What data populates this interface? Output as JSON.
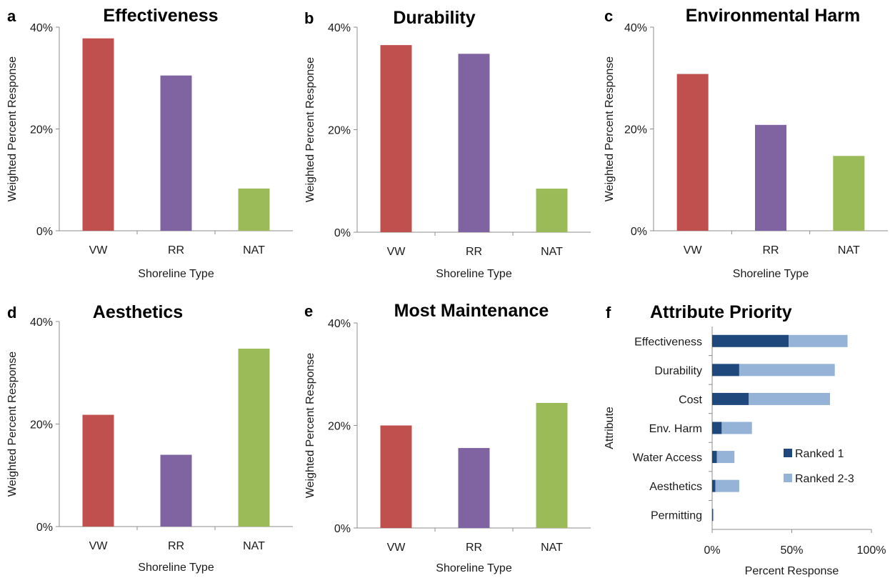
{
  "chart_data": [
    {
      "panel": "a",
      "type": "bar",
      "title": "Effectiveness",
      "categories": [
        "VW",
        "RR",
        "NAT"
      ],
      "values": [
        37.8,
        30.5,
        8.3
      ],
      "colors": [
        "#c0504d",
        "#8064a2",
        "#9bbb59"
      ],
      "xlabel": "Shoreline Type",
      "ylabel": "Weighted Percent Response",
      "ylim": [
        0,
        40
      ],
      "yticks": [
        "0%",
        "20%",
        "40%"
      ]
    },
    {
      "panel": "b",
      "type": "bar",
      "title": "Durability",
      "categories": [
        "VW",
        "RR",
        "NAT"
      ],
      "values": [
        36.5,
        34.8,
        8.5
      ],
      "colors": [
        "#c0504d",
        "#8064a2",
        "#9bbb59"
      ],
      "xlabel": "Shoreline Type",
      "ylabel": "Weighted Percent Response",
      "ylim": [
        0,
        40
      ],
      "yticks": [
        "0%",
        "20%",
        "40%"
      ]
    },
    {
      "panel": "c",
      "type": "bar",
      "title": "Environmental Harm",
      "categories": [
        "VW",
        "RR",
        "NAT"
      ],
      "values": [
        30.8,
        20.8,
        14.7
      ],
      "colors": [
        "#c0504d",
        "#8064a2",
        "#9bbb59"
      ],
      "xlabel": "Shoreline Type",
      "ylabel": "Weighted Percent Response",
      "ylim": [
        0,
        40
      ],
      "yticks": [
        "0%",
        "20%",
        "40%"
      ]
    },
    {
      "panel": "d",
      "type": "bar",
      "title": "Aesthetics",
      "categories": [
        "VW",
        "RR",
        "NAT"
      ],
      "values": [
        21.8,
        14.0,
        34.7
      ],
      "colors": [
        "#c0504d",
        "#8064a2",
        "#9bbb59"
      ],
      "xlabel": "Shoreline Type",
      "ylabel": "Weighted Percent Response",
      "ylim": [
        0,
        40
      ],
      "yticks": [
        "0%",
        "20%",
        "40%"
      ]
    },
    {
      "panel": "e",
      "type": "bar",
      "title": "Most Maintenance",
      "categories": [
        "VW",
        "RR",
        "NAT"
      ],
      "values": [
        20.0,
        15.6,
        24.4
      ],
      "colors": [
        "#c0504d",
        "#8064a2",
        "#9bbb59"
      ],
      "xlabel": "Shoreline Type",
      "ylabel": "Weighted Percent Response",
      "ylim": [
        0,
        40
      ],
      "yticks": [
        "0%",
        "20%",
        "40%"
      ]
    },
    {
      "panel": "f",
      "type": "bar",
      "orientation": "horizontal",
      "stacked": true,
      "title": "Attribute Priority",
      "categories": [
        "Effectiveness",
        "Durability",
        "Cost",
        "Env. Harm",
        "Water Access",
        "Aesthetics",
        "Permitting"
      ],
      "series": [
        {
          "name": "Ranked 1",
          "color": "#1f497d",
          "values": [
            48,
            17,
            23,
            6,
            3,
            2,
            0.5
          ]
        },
        {
          "name": "Ranked 2-3",
          "color": "#95b3d7",
          "values": [
            37,
            60,
            51,
            19,
            11,
            15,
            0.5
          ]
        }
      ],
      "xlabel": "Percent Response",
      "ylabel": "Attribute",
      "xlim": [
        0,
        100
      ],
      "xticks": [
        "0%",
        "50%",
        "100%"
      ],
      "legend_position": "lower-right"
    }
  ]
}
